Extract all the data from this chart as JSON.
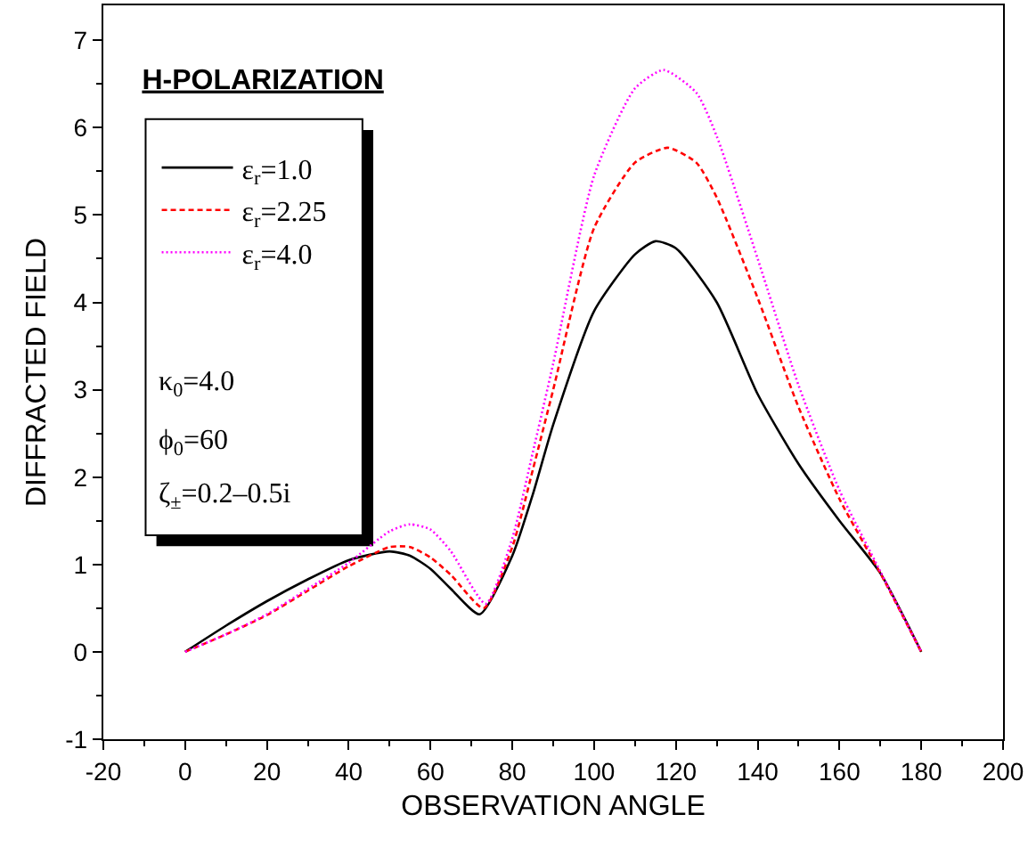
{
  "chart_data": {
    "type": "line",
    "title": "H-POLARIZATION",
    "xlabel": "OBSERVATION ANGLE",
    "ylabel": "DIFFRACTED FIELD",
    "xlim": [
      -20,
      200
    ],
    "xticks": [
      -20,
      0,
      20,
      40,
      60,
      80,
      100,
      120,
      140,
      160,
      180,
      200
    ],
    "ylim": [
      -1,
      7.4
    ],
    "yticks": [
      -1,
      0,
      1,
      2,
      3,
      4,
      5,
      6,
      7
    ],
    "grid": false,
    "legend": "top left",
    "marker": "none",
    "series": [
      {
        "name": "ε$_{r}$=1.0",
        "color": "#000000",
        "line_style": "solid",
        "x": [
          0,
          10,
          20,
          30,
          40,
          50,
          55,
          60,
          65,
          72,
          80,
          85,
          90,
          100,
          110,
          115,
          120,
          130,
          140,
          150,
          160,
          170,
          180
        ],
        "values": [
          0,
          0.3,
          0.58,
          0.83,
          1.05,
          1.15,
          1.1,
          0.95,
          0.72,
          0.43,
          1.1,
          1.8,
          2.6,
          3.9,
          4.55,
          4.7,
          4.62,
          4.0,
          2.95,
          2.15,
          1.5,
          0.9,
          0
        ]
      },
      {
        "name": "ε$_{r}$=2.25",
        "color": "#ff0000",
        "line_style": "dashed",
        "x": [
          0,
          10,
          20,
          30,
          40,
          50,
          55,
          60,
          65,
          73,
          80,
          85,
          90,
          100,
          110,
          118,
          125,
          130,
          140,
          150,
          160,
          170,
          180
        ],
        "values": [
          0,
          0.2,
          0.42,
          0.7,
          0.98,
          1.2,
          1.2,
          1.08,
          0.88,
          0.5,
          1.2,
          2.08,
          3.0,
          4.85,
          5.6,
          5.77,
          5.6,
          5.2,
          4.05,
          2.8,
          1.75,
          0.9,
          0
        ]
      },
      {
        "name": "ε$_{r}$=4.0",
        "color": "#ff00ff",
        "line_style": "dotted",
        "x": [
          0,
          10,
          20,
          30,
          40,
          50,
          55,
          60,
          65,
          73.5,
          80,
          85,
          90,
          100,
          110,
          117,
          125,
          130,
          140,
          150,
          160,
          170,
          180
        ],
        "values": [
          0,
          0.2,
          0.43,
          0.72,
          1.02,
          1.38,
          1.46,
          1.4,
          1.15,
          0.55,
          1.3,
          2.28,
          3.3,
          5.45,
          6.45,
          6.66,
          6.4,
          5.9,
          4.5,
          3.05,
          1.85,
          0.92,
          0
        ]
      }
    ],
    "annotations": [
      "κ$_{0}$=4.0",
      "ϕ$_{0}$=60",
      "ζ$_{±}$=0.2–0.5i"
    ]
  }
}
